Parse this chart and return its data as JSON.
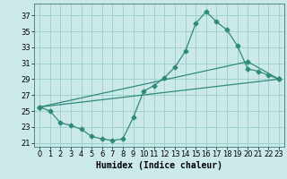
{
  "title": "",
  "xlabel": "Humidex (Indice chaleur)",
  "bg_color": "#cce9e9",
  "grid_color": "#99cccc",
  "line_color": "#2e8b7a",
  "xlim": [
    -0.5,
    23.5
  ],
  "ylim": [
    20.5,
    38.5
  ],
  "xticks": [
    0,
    1,
    2,
    3,
    4,
    5,
    6,
    7,
    8,
    9,
    10,
    11,
    12,
    13,
    14,
    15,
    16,
    17,
    18,
    19,
    20,
    21,
    22,
    23
  ],
  "yticks": [
    21,
    23,
    25,
    27,
    29,
    31,
    33,
    35,
    37
  ],
  "line1_x": [
    0,
    1,
    2,
    3,
    4,
    5,
    6,
    7,
    8,
    9,
    10,
    11,
    12,
    13,
    14,
    15,
    16,
    17,
    18,
    19,
    20,
    21,
    22,
    23
  ],
  "line1_y": [
    25.5,
    25.0,
    23.5,
    23.2,
    22.7,
    21.8,
    21.5,
    21.3,
    21.5,
    24.2,
    27.5,
    28.2,
    29.2,
    30.5,
    32.5,
    36.0,
    37.5,
    36.2,
    35.2,
    33.2,
    30.3,
    30.0,
    29.5,
    29.0
  ],
  "line2_x": [
    0,
    23
  ],
  "line2_y": [
    25.5,
    29.0
  ],
  "line3_x": [
    0,
    20,
    23
  ],
  "line3_y": [
    25.5,
    31.2,
    29.0
  ],
  "tick_fontsize": 6,
  "xlabel_fontsize": 7
}
